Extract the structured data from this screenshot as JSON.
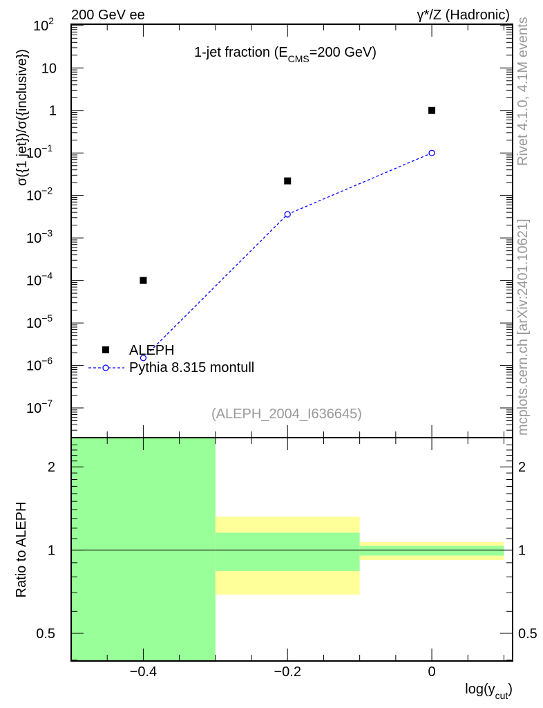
{
  "header": {
    "left": "200 GeV ee",
    "right": "γ*/Z (Hadronic)"
  },
  "side_text": {
    "rivet": "Rivet 4.1.0,  4.1M events",
    "mcplots": "mcplots.cern.ch [arXiv:2401.10621]"
  },
  "analysis_id": "(ALEPH_2004_I636645)",
  "colors": {
    "data": "#000000",
    "mc": "#0000ff",
    "band_stat": "#99ff99",
    "band_total": "#ffff99"
  },
  "chart_data": [
    {
      "type": "scatter",
      "title": {
        "main": "1-jet fraction (E",
        "sub": "CMS",
        "rest": "=200 GeV)"
      },
      "ylabel": "σ({1 jet})/σ({inclusive})",
      "yscale": "log",
      "xlim": [
        -0.5,
        0.112
      ],
      "ylim": [
        2e-08,
        107
      ],
      "yticks": [
        {
          "v": 100,
          "t": "10",
          "e": "2"
        },
        {
          "v": 10,
          "t": "10",
          "e": ""
        },
        {
          "v": 1,
          "t": "1",
          "e": ""
        },
        {
          "v": 0.1,
          "t": "10",
          "e": "−1"
        },
        {
          "v": 0.01,
          "t": "10",
          "e": "−2"
        },
        {
          "v": 0.001,
          "t": "10",
          "e": "−3"
        },
        {
          "v": 0.0001,
          "t": "10",
          "e": "−4"
        },
        {
          "v": 1e-05,
          "t": "10",
          "e": "−5"
        },
        {
          "v": 1e-06,
          "t": "10",
          "e": "−6"
        },
        {
          "v": 1e-07,
          "t": "10",
          "e": "−7"
        }
      ],
      "legend": {
        "position": "bottom-left",
        "entries": [
          "ALEPH",
          "Pythia 8.315 montull"
        ]
      },
      "series": [
        {
          "name": "ALEPH",
          "x": [
            -0.4,
            -0.2,
            0.0
          ],
          "y": [
            0.0001,
            0.022,
            1.0
          ],
          "marker": "square"
        },
        {
          "name": "Pythia 8.315 montull",
          "x": [
            -0.4,
            -0.2,
            0.0
          ],
          "y": [
            1.5e-06,
            0.0036,
            0.1
          ],
          "marker": "open-circle",
          "line": "dashed"
        }
      ]
    },
    {
      "type": "area",
      "ylabel": "Ratio to ALEPH",
      "xlabel": {
        "main": "log(y",
        "sub": "cut",
        "rest": ")"
      },
      "yscale": "log",
      "xlim": [
        -0.5,
        0.112
      ],
      "ylim": [
        0.397,
        2.55
      ],
      "yticks": [
        {
          "v": 2,
          "t": "2"
        },
        {
          "v": 1,
          "t": "1"
        },
        {
          "v": 0.5,
          "t": "0.5"
        }
      ],
      "xticks": [
        {
          "v": -0.4,
          "t": "−0.4"
        },
        {
          "v": -0.2,
          "t": "−0.2"
        },
        {
          "v": 0,
          "t": "0"
        }
      ],
      "bins": [
        {
          "lo": -0.5,
          "hi": -0.3,
          "total": [
            0.3,
            3.0
          ],
          "stat": [
            0.3,
            3.0
          ]
        },
        {
          "lo": -0.3,
          "hi": -0.1,
          "total": [
            0.69,
            1.32
          ],
          "stat": [
            0.84,
            1.155
          ]
        },
        {
          "lo": -0.1,
          "hi": 0.1,
          "total": [
            0.92,
            1.07
          ],
          "stat": [
            0.955,
            1.035
          ]
        }
      ],
      "reference_line": 1
    }
  ]
}
